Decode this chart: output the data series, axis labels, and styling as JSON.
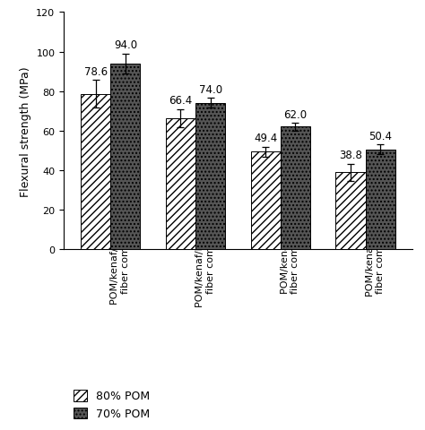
{
  "categories": [
    "POM/kenaf/PET long\nfiber composite",
    "POM/kenaf/PET short\nfiber composite",
    "POM/kenaf long\nfiber composite",
    "POM/kenaf short\nfiber composite"
  ],
  "values_80pom": [
    78.6,
    66.4,
    49.4,
    38.8
  ],
  "values_70pom": [
    94.0,
    74.0,
    62.0,
    50.4
  ],
  "errors_80pom": [
    7.0,
    4.5,
    2.5,
    4.5
  ],
  "errors_70pom": [
    5.0,
    2.5,
    2.0,
    2.5
  ],
  "ylabel": "Flexural strength (MPa)",
  "ylim": [
    0,
    120
  ],
  "yticks": [
    0,
    20,
    40,
    60,
    80,
    100,
    120
  ],
  "bar_width": 0.35,
  "color_80pom": "#ffffff",
  "color_70pom": "#555555",
  "hatch_80pom": "////",
  "hatch_70pom": "....",
  "legend_labels": [
    "80% POM",
    "70% POM"
  ],
  "label_fontsize": 9,
  "tick_fontsize": 8,
  "value_fontsize": 8.5
}
